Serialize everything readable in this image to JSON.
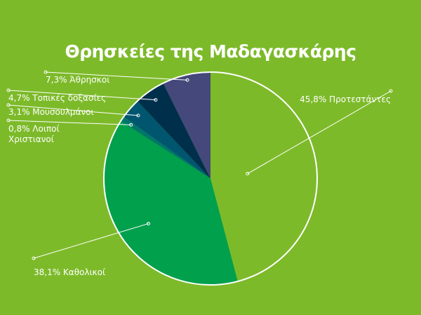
{
  "chart_data": {
    "type": "pie",
    "title": "Θρησκείες της Μαδαγασκάρης",
    "slices": [
      {
        "label": "45,8% Προτεστάντες",
        "value": 45.8,
        "color": "#7dba2a"
      },
      {
        "label": "38,1% Καθολικοί",
        "value": 38.1,
        "color": "#00a04c"
      },
      {
        "label": "0,8% Λοιποί",
        "label_line2": "Χριστιανοί",
        "value": 0.8,
        "color": "#00766a"
      },
      {
        "label": "3,1% Μουσουλμάνοι",
        "value": 3.1,
        "color": "#00566e"
      },
      {
        "label": "4,7% Τοπικές δοξασίες",
        "value": 4.7,
        "color": "#002f4c"
      },
      {
        "label": "7,3% Άθρησκοι",
        "value": 7.3,
        "color": "#45487a"
      }
    ]
  }
}
